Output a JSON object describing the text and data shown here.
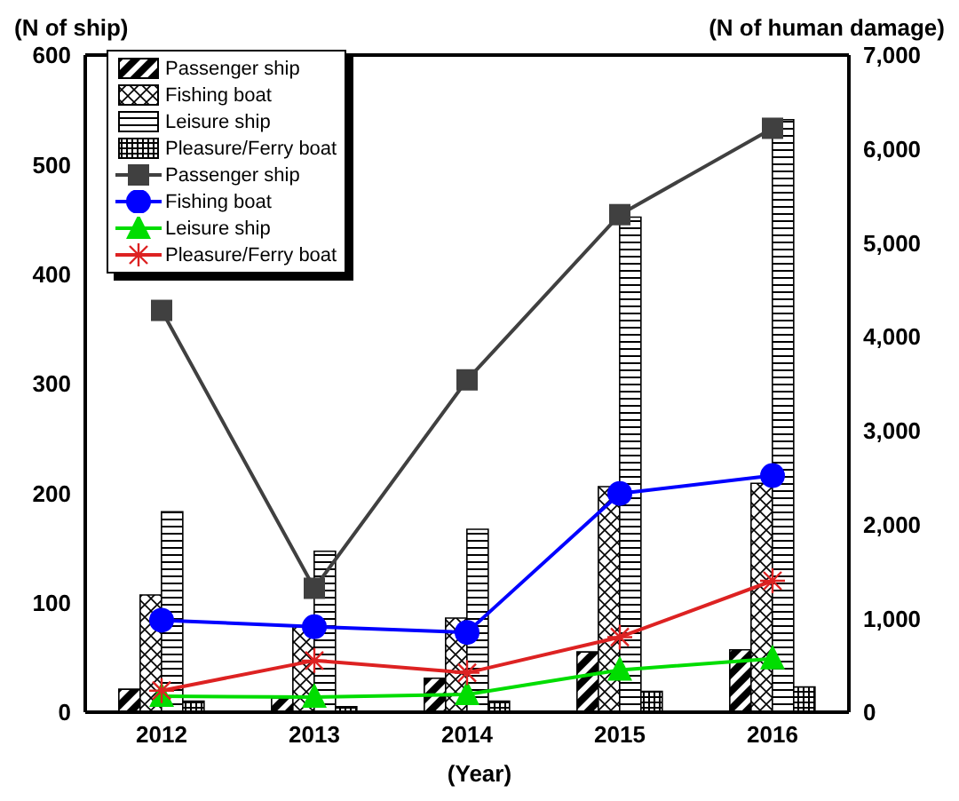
{
  "chart_data": {
    "type": "bar",
    "xlabel": "(Year)",
    "ylabel": "(N of ship)",
    "y2label": "(N of human damage)",
    "categories": [
      "2012",
      "2013",
      "2014",
      "2015",
      "2016"
    ],
    "series": [
      {
        "name": "Passenger ship",
        "color": "#000000",
        "values": [
          21,
          13,
          31,
          55,
          57
        ]
      },
      {
        "name": "Fishing boat",
        "color": "#000000",
        "values": [
          107,
          78,
          86,
          206,
          209
        ]
      },
      {
        "name": "Leisure ship",
        "color": "#000000",
        "values": [
          183,
          147,
          167,
          452,
          541
        ]
      },
      {
        "name": "Pleasure/Ferry boat",
        "color": "#000000",
        "values": [
          10,
          5,
          10,
          19,
          23
        ]
      },
      {
        "name": "Passenger ship",
        "type": "line",
        "axis": "y2",
        "marker": "square",
        "color": "#404040",
        "values": [
          4280,
          1320,
          3540,
          5300,
          6220
        ]
      },
      {
        "name": "Fishing boat",
        "type": "line",
        "axis": "y2",
        "marker": "circle",
        "color": "#0000ff",
        "values": [
          980,
          910,
          850,
          2330,
          2520
        ]
      },
      {
        "name": "Leisure ship",
        "type": "line",
        "axis": "y2",
        "marker": "triangle",
        "color": "#00dd00",
        "values": [
          170,
          160,
          190,
          450,
          570
        ]
      },
      {
        "name": "Pleasure/Ferry boat",
        "type": "line",
        "axis": "y2",
        "marker": "cross",
        "color": "#dd2222",
        "values": [
          230,
          550,
          420,
          800,
          1400
        ]
      }
    ],
    "ylim": [
      0,
      600
    ],
    "yticks": [
      0,
      100,
      200,
      300,
      400,
      500,
      600
    ],
    "y2lim": [
      0,
      7000
    ],
    "y2ticks": [
      0,
      {
        "value": 1000,
        "label": "1,000"
      },
      {
        "value": 2000,
        "label": "2,000"
      },
      {
        "value": 3000,
        "label": "3,000"
      },
      {
        "value": 4000,
        "label": "4,000"
      },
      {
        "value": 5000,
        "label": "5,000"
      },
      {
        "value": 6000,
        "label": "6,000"
      },
      {
        "value": 7000,
        "label": "7,000"
      }
    ],
    "grid": false,
    "legend": "top left"
  }
}
